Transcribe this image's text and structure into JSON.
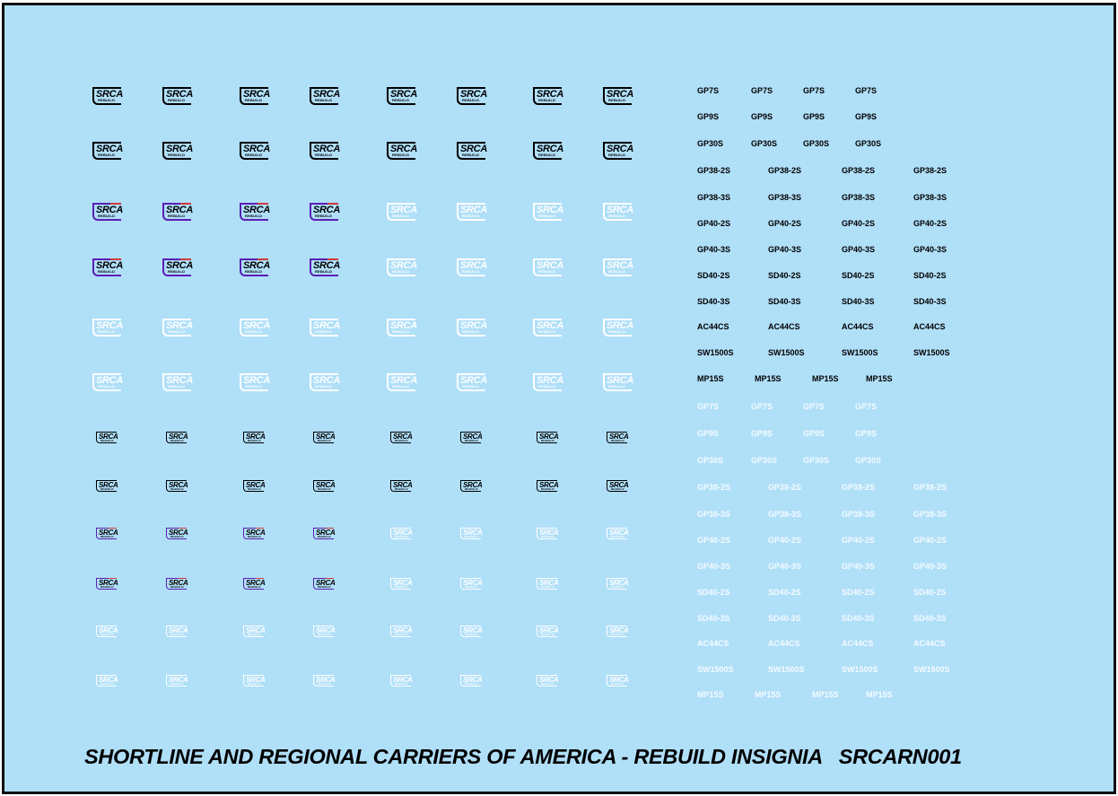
{
  "logo": {
    "word": "SRCA",
    "sub": "REBUILD"
  },
  "colors": {
    "background": "#b0dff8",
    "border": "#111111",
    "black_decal": "#000000",
    "white_decal": "#ffffff",
    "stripe_blue": "#5a1fb5",
    "stripe_red": "#d23a3a"
  },
  "logo_rows": [
    {
      "size": "big",
      "colors": [
        "black",
        "black",
        "black",
        "black",
        "black",
        "black",
        "black",
        "black"
      ]
    },
    {
      "size": "big",
      "colors": [
        "black",
        "black",
        "black",
        "black",
        "black",
        "black",
        "black",
        "black"
      ]
    },
    {
      "size": "big",
      "colors": [
        "blue",
        "blue",
        "blue",
        "blue",
        "white",
        "white",
        "white",
        "white"
      ]
    },
    {
      "size": "big",
      "colors": [
        "blue",
        "blue",
        "blue",
        "blue",
        "white",
        "white",
        "white",
        "white"
      ]
    },
    {
      "size": "big",
      "colors": [
        "white",
        "white",
        "white",
        "white",
        "white",
        "white",
        "white",
        "white"
      ]
    },
    {
      "size": "big",
      "colors": [
        "white",
        "white",
        "white",
        "white",
        "white",
        "white",
        "white",
        "white"
      ]
    },
    {
      "size": "small",
      "colors": [
        "black",
        "black",
        "black",
        "black",
        "black",
        "black",
        "black",
        "black"
      ]
    },
    {
      "size": "small",
      "colors": [
        "black",
        "black",
        "black",
        "black",
        "black",
        "black",
        "black",
        "black"
      ]
    },
    {
      "size": "small",
      "colors": [
        "blue",
        "blue",
        "blue",
        "blue",
        "white",
        "white",
        "white",
        "white"
      ]
    },
    {
      "size": "small",
      "colors": [
        "blue",
        "blue",
        "blue",
        "blue",
        "white",
        "white",
        "white",
        "white"
      ]
    },
    {
      "size": "small",
      "colors": [
        "white",
        "white",
        "white",
        "white",
        "white",
        "white",
        "white",
        "white"
      ]
    },
    {
      "size": "small",
      "colors": [
        "white",
        "white",
        "white",
        "white",
        "white",
        "white",
        "white",
        "white"
      ]
    }
  ],
  "model_rows": [
    {
      "color": "black",
      "labels": [
        "GP7S",
        "GP7S",
        "GP7S",
        "GP7S"
      ]
    },
    {
      "color": "black",
      "labels": [
        "GP9S",
        "GP9S",
        "GP9S",
        "GP9S"
      ]
    },
    {
      "color": "black",
      "labels": [
        "GP30S",
        "GP30S",
        "GP30S",
        "GP30S"
      ]
    },
    {
      "color": "black",
      "labels": [
        "GP38-2S",
        "GP38-2S",
        "GP38-2S",
        "GP38-2S"
      ]
    },
    {
      "color": "black",
      "labels": [
        "GP38-3S",
        "GP38-3S",
        "GP38-3S",
        "GP38-3S"
      ]
    },
    {
      "color": "black",
      "labels": [
        "GP40-2S",
        "GP40-2S",
        "GP40-2S",
        "GP40-2S"
      ]
    },
    {
      "color": "black",
      "labels": [
        "GP40-3S",
        "GP40-3S",
        "GP40-3S",
        "GP40-3S"
      ]
    },
    {
      "color": "black",
      "labels": [
        "SD40-2S",
        "SD40-2S",
        "SD40-2S",
        "SD40-2S"
      ]
    },
    {
      "color": "black",
      "labels": [
        "SD40-3S",
        "SD40-3S",
        "SD40-3S",
        "SD40-3S"
      ]
    },
    {
      "color": "black",
      "labels": [
        "AC44CS",
        "AC44CS",
        "AC44CS",
        "AC44CS"
      ]
    },
    {
      "color": "black",
      "labels": [
        "SW1500S",
        "SW1500S",
        "SW1500S",
        "SW1500S"
      ]
    },
    {
      "color": "black",
      "labels": [
        "MP15S",
        "MP15S",
        "MP15S",
        "MP15S"
      ]
    },
    {
      "color": "white",
      "labels": [
        "GP7S",
        "GP7S",
        "GP7S",
        "GP7S"
      ]
    },
    {
      "color": "white",
      "labels": [
        "GP9S",
        "GP9S",
        "GP9S",
        "GP9S"
      ]
    },
    {
      "color": "white",
      "labels": [
        "GP30S",
        "GP30S",
        "GP30S",
        "GP30S"
      ]
    },
    {
      "color": "white",
      "labels": [
        "GP38-2S",
        "GP38-2S",
        "GP38-2S",
        "GP38-2S"
      ]
    },
    {
      "color": "white",
      "labels": [
        "GP38-3S",
        "GP38-3S",
        "GP38-3S",
        "GP38-3S"
      ]
    },
    {
      "color": "white",
      "labels": [
        "GP40-2S",
        "GP40-2S",
        "GP40-2S",
        "GP40-2S"
      ]
    },
    {
      "color": "white",
      "labels": [
        "GP40-3S",
        "GP40-3S",
        "GP40-3S",
        "GP40-3S"
      ]
    },
    {
      "color": "white",
      "labels": [
        "SD40-2S",
        "SD40-2S",
        "SD40-2S",
        "SD40-2S"
      ]
    },
    {
      "color": "white",
      "labels": [
        "SD40-3S",
        "SD40-3S",
        "SD40-3S",
        "SD40-3S"
      ]
    },
    {
      "color": "white",
      "labels": [
        "AC44CS",
        "AC44CS",
        "AC44CS",
        "AC44CS"
      ]
    },
    {
      "color": "white",
      "labels": [
        "SW1500S",
        "SW1500S",
        "SW1500S",
        "SW1500S"
      ]
    },
    {
      "color": "white",
      "labels": [
        "MP15S",
        "MP15S",
        "MP15S",
        "MP15S"
      ]
    }
  ],
  "caption": "SHORTLINE AND REGIONAL CARRIERS OF AMERICA - REBUILD INSIGNIA   SRCARN001"
}
